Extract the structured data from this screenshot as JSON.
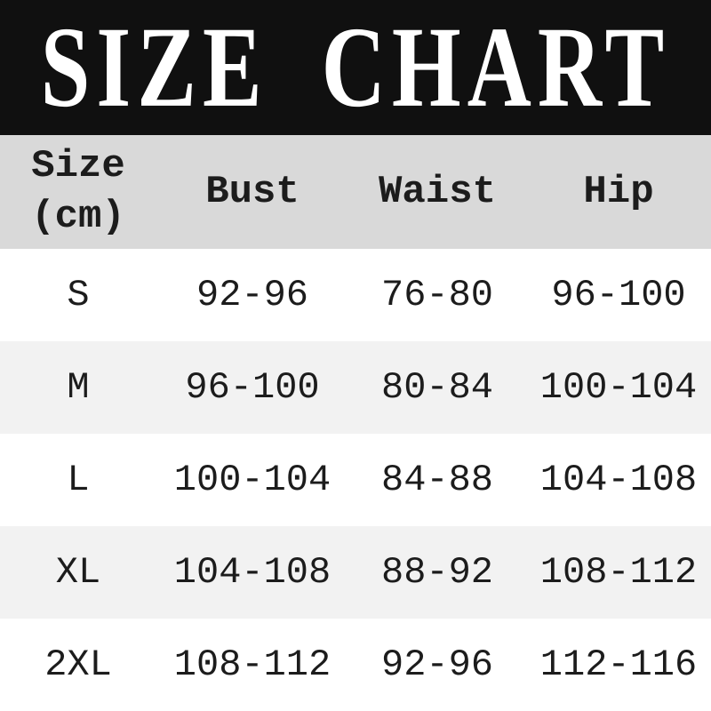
{
  "page_title": "SIZE CHART",
  "colors": {
    "banner_bg": "#101010",
    "banner_text": "#ffffff",
    "header_row_bg": "#d9d9d9",
    "row_bg_odd": "#ffffff",
    "row_bg_even": "#f2f2f2",
    "table_text": "#1c1c1c"
  },
  "table": {
    "header": {
      "size_line1": "Size",
      "size_line2": "(cm)",
      "bust": "Bust",
      "waist": "Waist",
      "hip": "Hip"
    },
    "rows": [
      {
        "size": "S",
        "bust": "92-96",
        "waist": "76-80",
        "hip": "96-100"
      },
      {
        "size": "M",
        "bust": "96-100",
        "waist": "80-84",
        "hip": "100-104"
      },
      {
        "size": "L",
        "bust": "100-104",
        "waist": "84-88",
        "hip": "104-108"
      },
      {
        "size": "XL",
        "bust": "104-108",
        "waist": "88-92",
        "hip": "108-112"
      },
      {
        "size": "2XL",
        "bust": "108-112",
        "waist": "92-96",
        "hip": "112-116"
      }
    ]
  },
  "chart_data": {
    "type": "table",
    "title": "SIZE CHART",
    "unit": "cm",
    "columns": [
      "Size (cm)",
      "Bust",
      "Waist",
      "Hip"
    ],
    "rows": [
      [
        "S",
        "92-96",
        "76-80",
        "96-100"
      ],
      [
        "M",
        "96-100",
        "80-84",
        "100-104"
      ],
      [
        "L",
        "100-104",
        "84-88",
        "104-108"
      ],
      [
        "XL",
        "104-108",
        "88-92",
        "108-112"
      ],
      [
        "2XL",
        "108-112",
        "92-96",
        "112-116"
      ]
    ]
  }
}
